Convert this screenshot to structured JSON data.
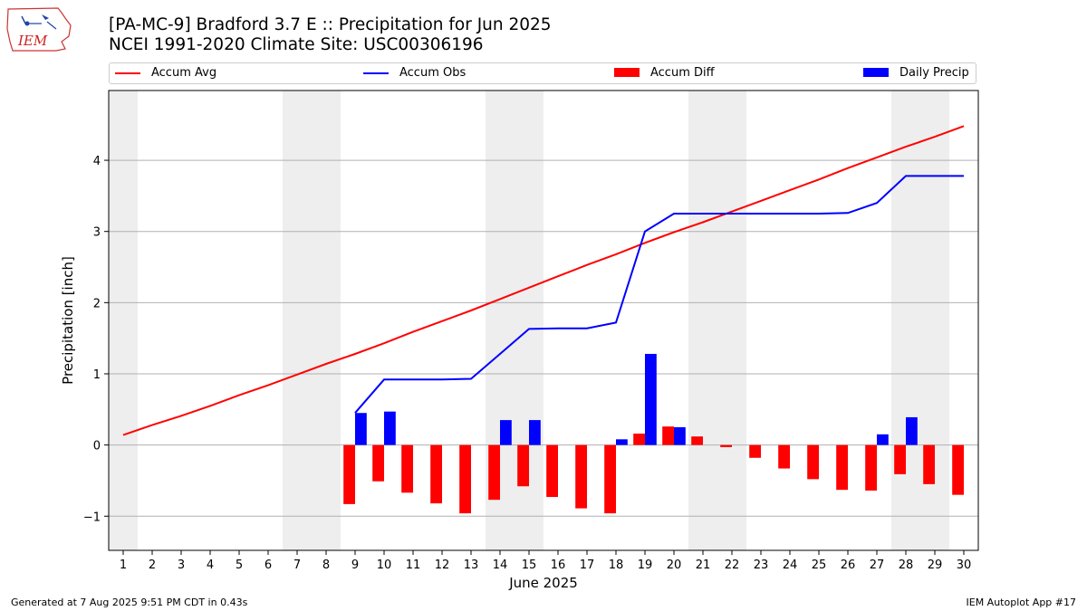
{
  "header": {
    "title": "[PA-MC-9] Bradford 3.7 E :: Precipitation for Jun 2025",
    "subtitle": "NCEI 1991-2020 Climate Site: USC00306196",
    "logo_text": "IEM"
  },
  "footer": {
    "generated": "Generated at 7 Aug 2025 9:51 PM CDT in 0.43s",
    "app": "IEM Autoplot App #17"
  },
  "colors": {
    "accum_avg": "#ff0000",
    "accum_obs": "#0000ff",
    "accum_diff": "#ff0000",
    "daily_precip": "#0000ff",
    "weekend_band": "#eeeeee"
  },
  "chart_data": {
    "type": "bar",
    "xlabel": "June 2025",
    "ylabel": "Precipitation [inch]",
    "xlim": [
      0.5,
      30.5
    ],
    "ylim": [
      -1.48,
      4.98
    ],
    "x_ticks": [
      1,
      2,
      3,
      4,
      5,
      6,
      7,
      8,
      9,
      10,
      11,
      12,
      13,
      14,
      15,
      16,
      17,
      18,
      19,
      20,
      21,
      22,
      23,
      24,
      25,
      26,
      27,
      28,
      29,
      30
    ],
    "y_ticks": [
      -1,
      0,
      1,
      2,
      3,
      4
    ],
    "grid": "horizontal",
    "legend_position": "top",
    "weekend_days": [
      1,
      7,
      8,
      14,
      15,
      21,
      22,
      28,
      29
    ],
    "legend": [
      {
        "key": "accum_avg",
        "label": "Accum Avg",
        "kind": "line"
      },
      {
        "key": "accum_obs",
        "label": "Accum Obs",
        "kind": "line"
      },
      {
        "key": "accum_diff",
        "label": "Accum Diff",
        "kind": "bar"
      },
      {
        "key": "daily_precip",
        "label": "Daily Precip",
        "kind": "bar"
      }
    ],
    "series": [
      {
        "name": "Accum Avg",
        "type": "line",
        "x": [
          1,
          2,
          3,
          4,
          5,
          6,
          7,
          8,
          9,
          10,
          11,
          12,
          13,
          14,
          15,
          16,
          17,
          18,
          19,
          20,
          21,
          22,
          23,
          24,
          25,
          26,
          27,
          28,
          29,
          30
        ],
        "values": [
          0.14,
          0.28,
          0.41,
          0.55,
          0.7,
          0.84,
          0.99,
          1.14,
          1.28,
          1.43,
          1.59,
          1.74,
          1.89,
          2.05,
          2.21,
          2.37,
          2.53,
          2.68,
          2.84,
          2.99,
          3.13,
          3.28,
          3.43,
          3.58,
          3.73,
          3.89,
          4.04,
          4.19,
          4.33,
          4.48
        ]
      },
      {
        "name": "Accum Obs",
        "type": "line",
        "x": [
          9,
          10,
          11,
          12,
          13,
          14,
          15,
          16,
          17,
          18,
          19,
          20,
          21,
          22,
          23,
          24,
          25,
          26,
          27,
          28,
          29,
          30
        ],
        "values": [
          0.45,
          0.92,
          0.92,
          0.92,
          0.93,
          1.28,
          1.63,
          1.64,
          1.64,
          1.72,
          3.0,
          3.25,
          3.25,
          3.25,
          3.25,
          3.25,
          3.25,
          3.26,
          3.4,
          3.78,
          3.78,
          3.78
        ]
      },
      {
        "name": "Accum Diff",
        "type": "bar",
        "x": [
          9,
          10,
          11,
          12,
          13,
          14,
          15,
          16,
          17,
          18,
          19,
          20,
          21,
          22,
          23,
          24,
          25,
          26,
          27,
          28,
          29,
          30
        ],
        "values": [
          -0.83,
          -0.51,
          -0.67,
          -0.82,
          -0.96,
          -0.77,
          -0.58,
          -0.73,
          -0.89,
          -0.96,
          0.16,
          0.26,
          0.12,
          -0.03,
          -0.18,
          -0.33,
          -0.48,
          -0.63,
          -0.64,
          -0.41,
          -0.55,
          -0.7
        ]
      },
      {
        "name": "Daily Precip",
        "type": "bar",
        "x": [
          9,
          10,
          14,
          15,
          18,
          19,
          20,
          27,
          28
        ],
        "values": [
          0.45,
          0.47,
          0.35,
          0.35,
          0.08,
          1.28,
          0.25,
          0.15,
          0.39
        ]
      }
    ]
  }
}
